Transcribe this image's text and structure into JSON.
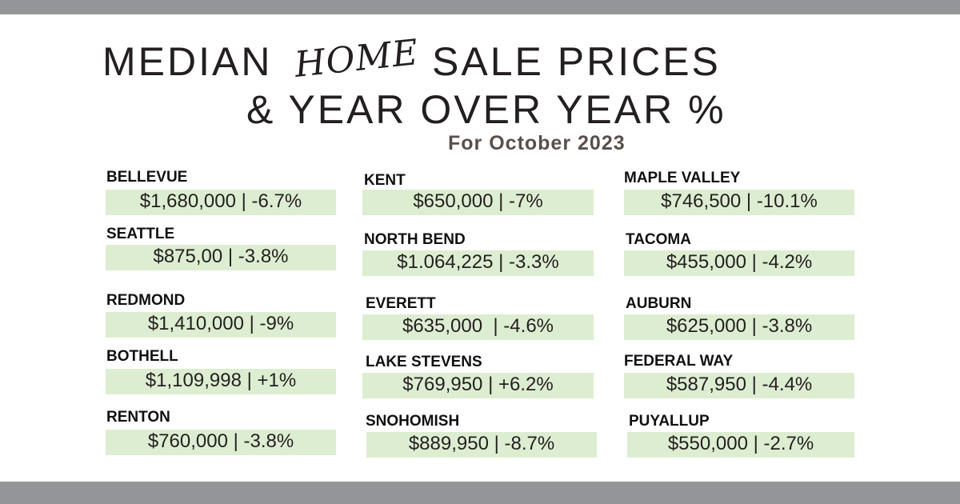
{
  "header": {
    "title_before": "MEDIAN",
    "title_script": "HOME",
    "title_after": "SALE PRICES",
    "title_line2": "& YEAR OVER YEAR %",
    "subtitle": "For October 2023"
  },
  "cities": [
    {
      "name": "BELLEVUE",
      "value": "$1,680,000 | -6.7%"
    },
    {
      "name": "SEATTLE",
      "value": "$875,00 | -3.8%"
    },
    {
      "name": "REDMOND",
      "value": "$1,410,000 | -9%"
    },
    {
      "name": "BOTHELL",
      "value": "$1,109,998 | +1%"
    },
    {
      "name": "RENTON",
      "value": "$760,000 | -3.8%"
    },
    {
      "name": "KENT",
      "value": "$650,000 | -7%"
    },
    {
      "name": "NORTH BEND",
      "value": "$1.064,225 | -3.3%"
    },
    {
      "name": "EVERETT",
      "value": "$635,000  | -4.6%"
    },
    {
      "name": "LAKE STEVENS",
      "value": "$769,950 | +6.2%"
    },
    {
      "name": "SNOHOMISH",
      "value": "$889,950 | -8.7%"
    },
    {
      "name": "MAPLE VALLEY",
      "value": "$746,500 | -10.1%"
    },
    {
      "name": "TACOMA",
      "value": "$455,000 | -4.2%"
    },
    {
      "name": "AUBURN",
      "value": "$625,000 | -3.8%"
    },
    {
      "name": "FEDERAL WAY",
      "value": "$587,950 | -4.4%"
    },
    {
      "name": "PUYALLUP",
      "value": "$550,000 | -2.7%"
    }
  ]
}
